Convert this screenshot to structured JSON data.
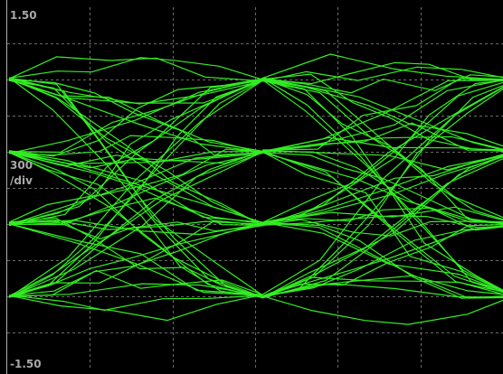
{
  "display": {
    "y_top_label": "1.50",
    "y_bottom_label": "-1.50",
    "scale_value": "300",
    "scale_unit": "/div",
    "trace_color": "#33ee22",
    "grid_color": "#6a6a6a",
    "background_color": "#000000"
  },
  "chart_data": {
    "type": "line",
    "ylim": [
      -1.5,
      1.5
    ],
    "grid": true,
    "levels": [
      0.9,
      0.3,
      -0.3,
      -0.9
    ],
    "crossover_points_per_screen": 3
  }
}
